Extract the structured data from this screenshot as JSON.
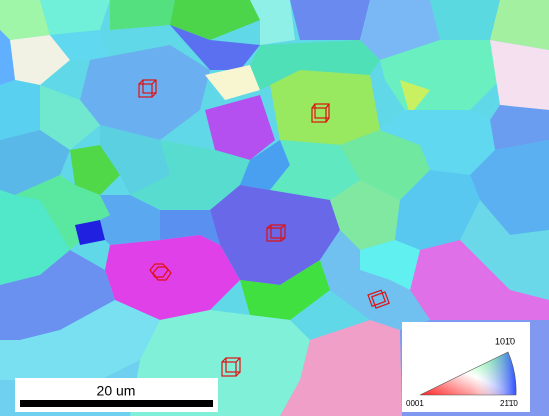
{
  "scale_bar": {
    "label": "20 um"
  },
  "legend": {
    "top": "101̄0",
    "left": "0001",
    "right": "21̄1̄0"
  }
}
